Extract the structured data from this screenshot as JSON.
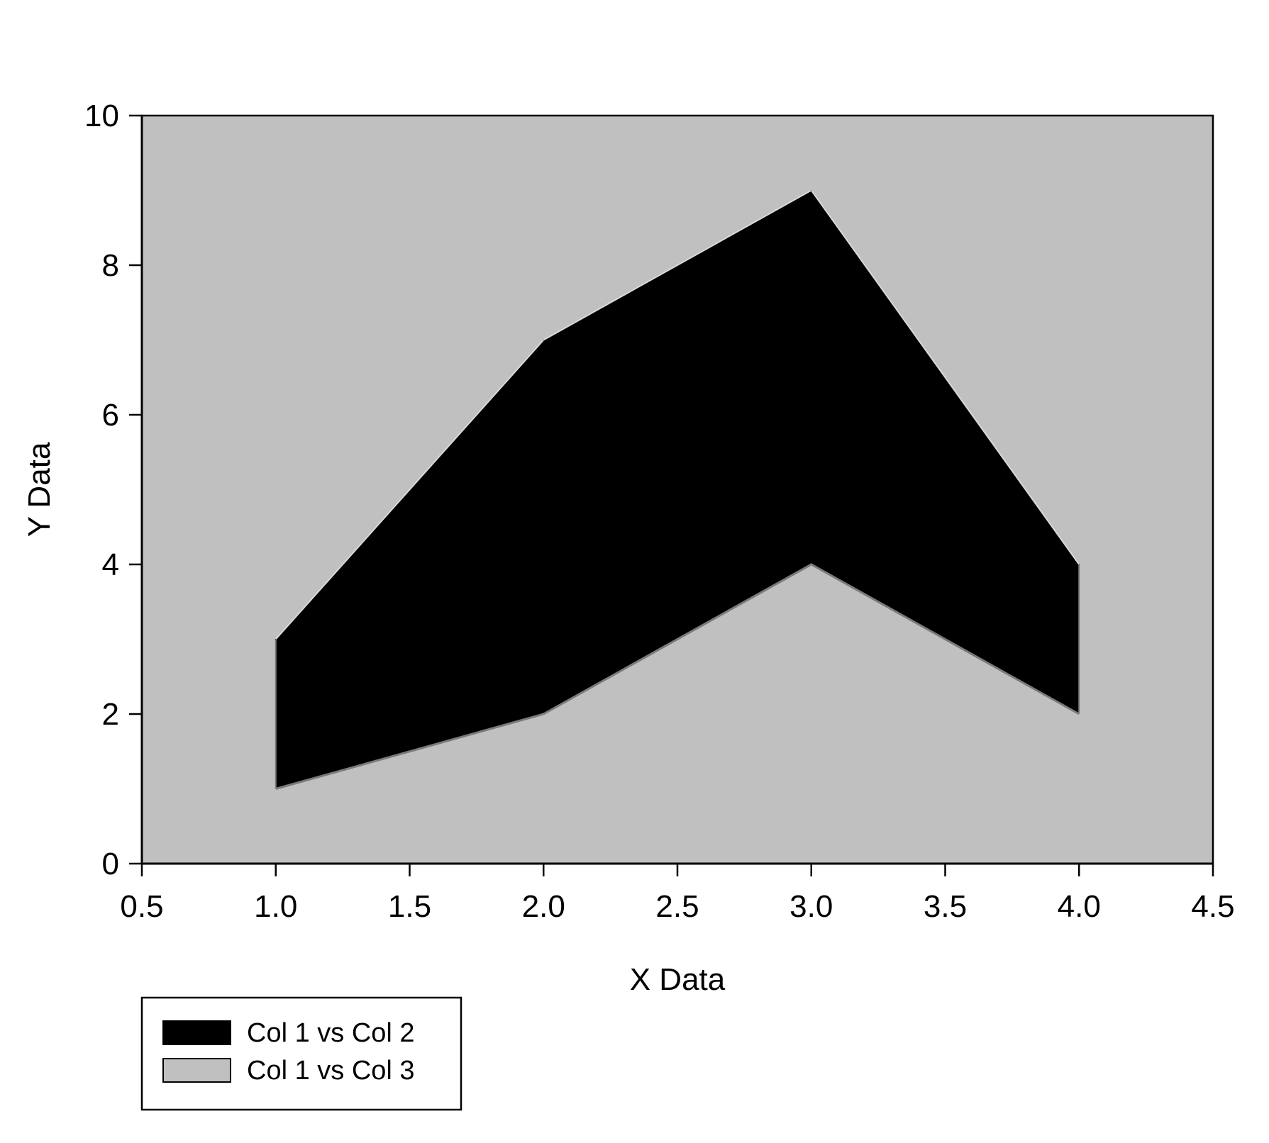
{
  "chart_data": {
    "type": "area",
    "xlabel": "X Data",
    "ylabel": "Y Data",
    "xlim": [
      0.5,
      4.5
    ],
    "ylim": [
      0,
      10
    ],
    "x_ticks": [
      "0.5",
      "1.0",
      "1.5",
      "2.0",
      "2.5",
      "3.0",
      "3.5",
      "4.0",
      "4.5"
    ],
    "y_ticks": [
      "0",
      "2",
      "4",
      "6",
      "8",
      "10"
    ],
    "x": [
      1.0,
      2.0,
      3.0,
      4.0
    ],
    "series": [
      {
        "name": "Col 1 vs Col 2",
        "values": [
          3,
          7,
          9,
          4
        ],
        "color": "#000000"
      },
      {
        "name": "Col 1 vs Col 3",
        "values": [
          1,
          2,
          4,
          2
        ],
        "color": "#c0c0c0"
      }
    ],
    "plot_background": "#c0c0c0",
    "grid": false,
    "legend_position": "bottom-left, below plot"
  }
}
